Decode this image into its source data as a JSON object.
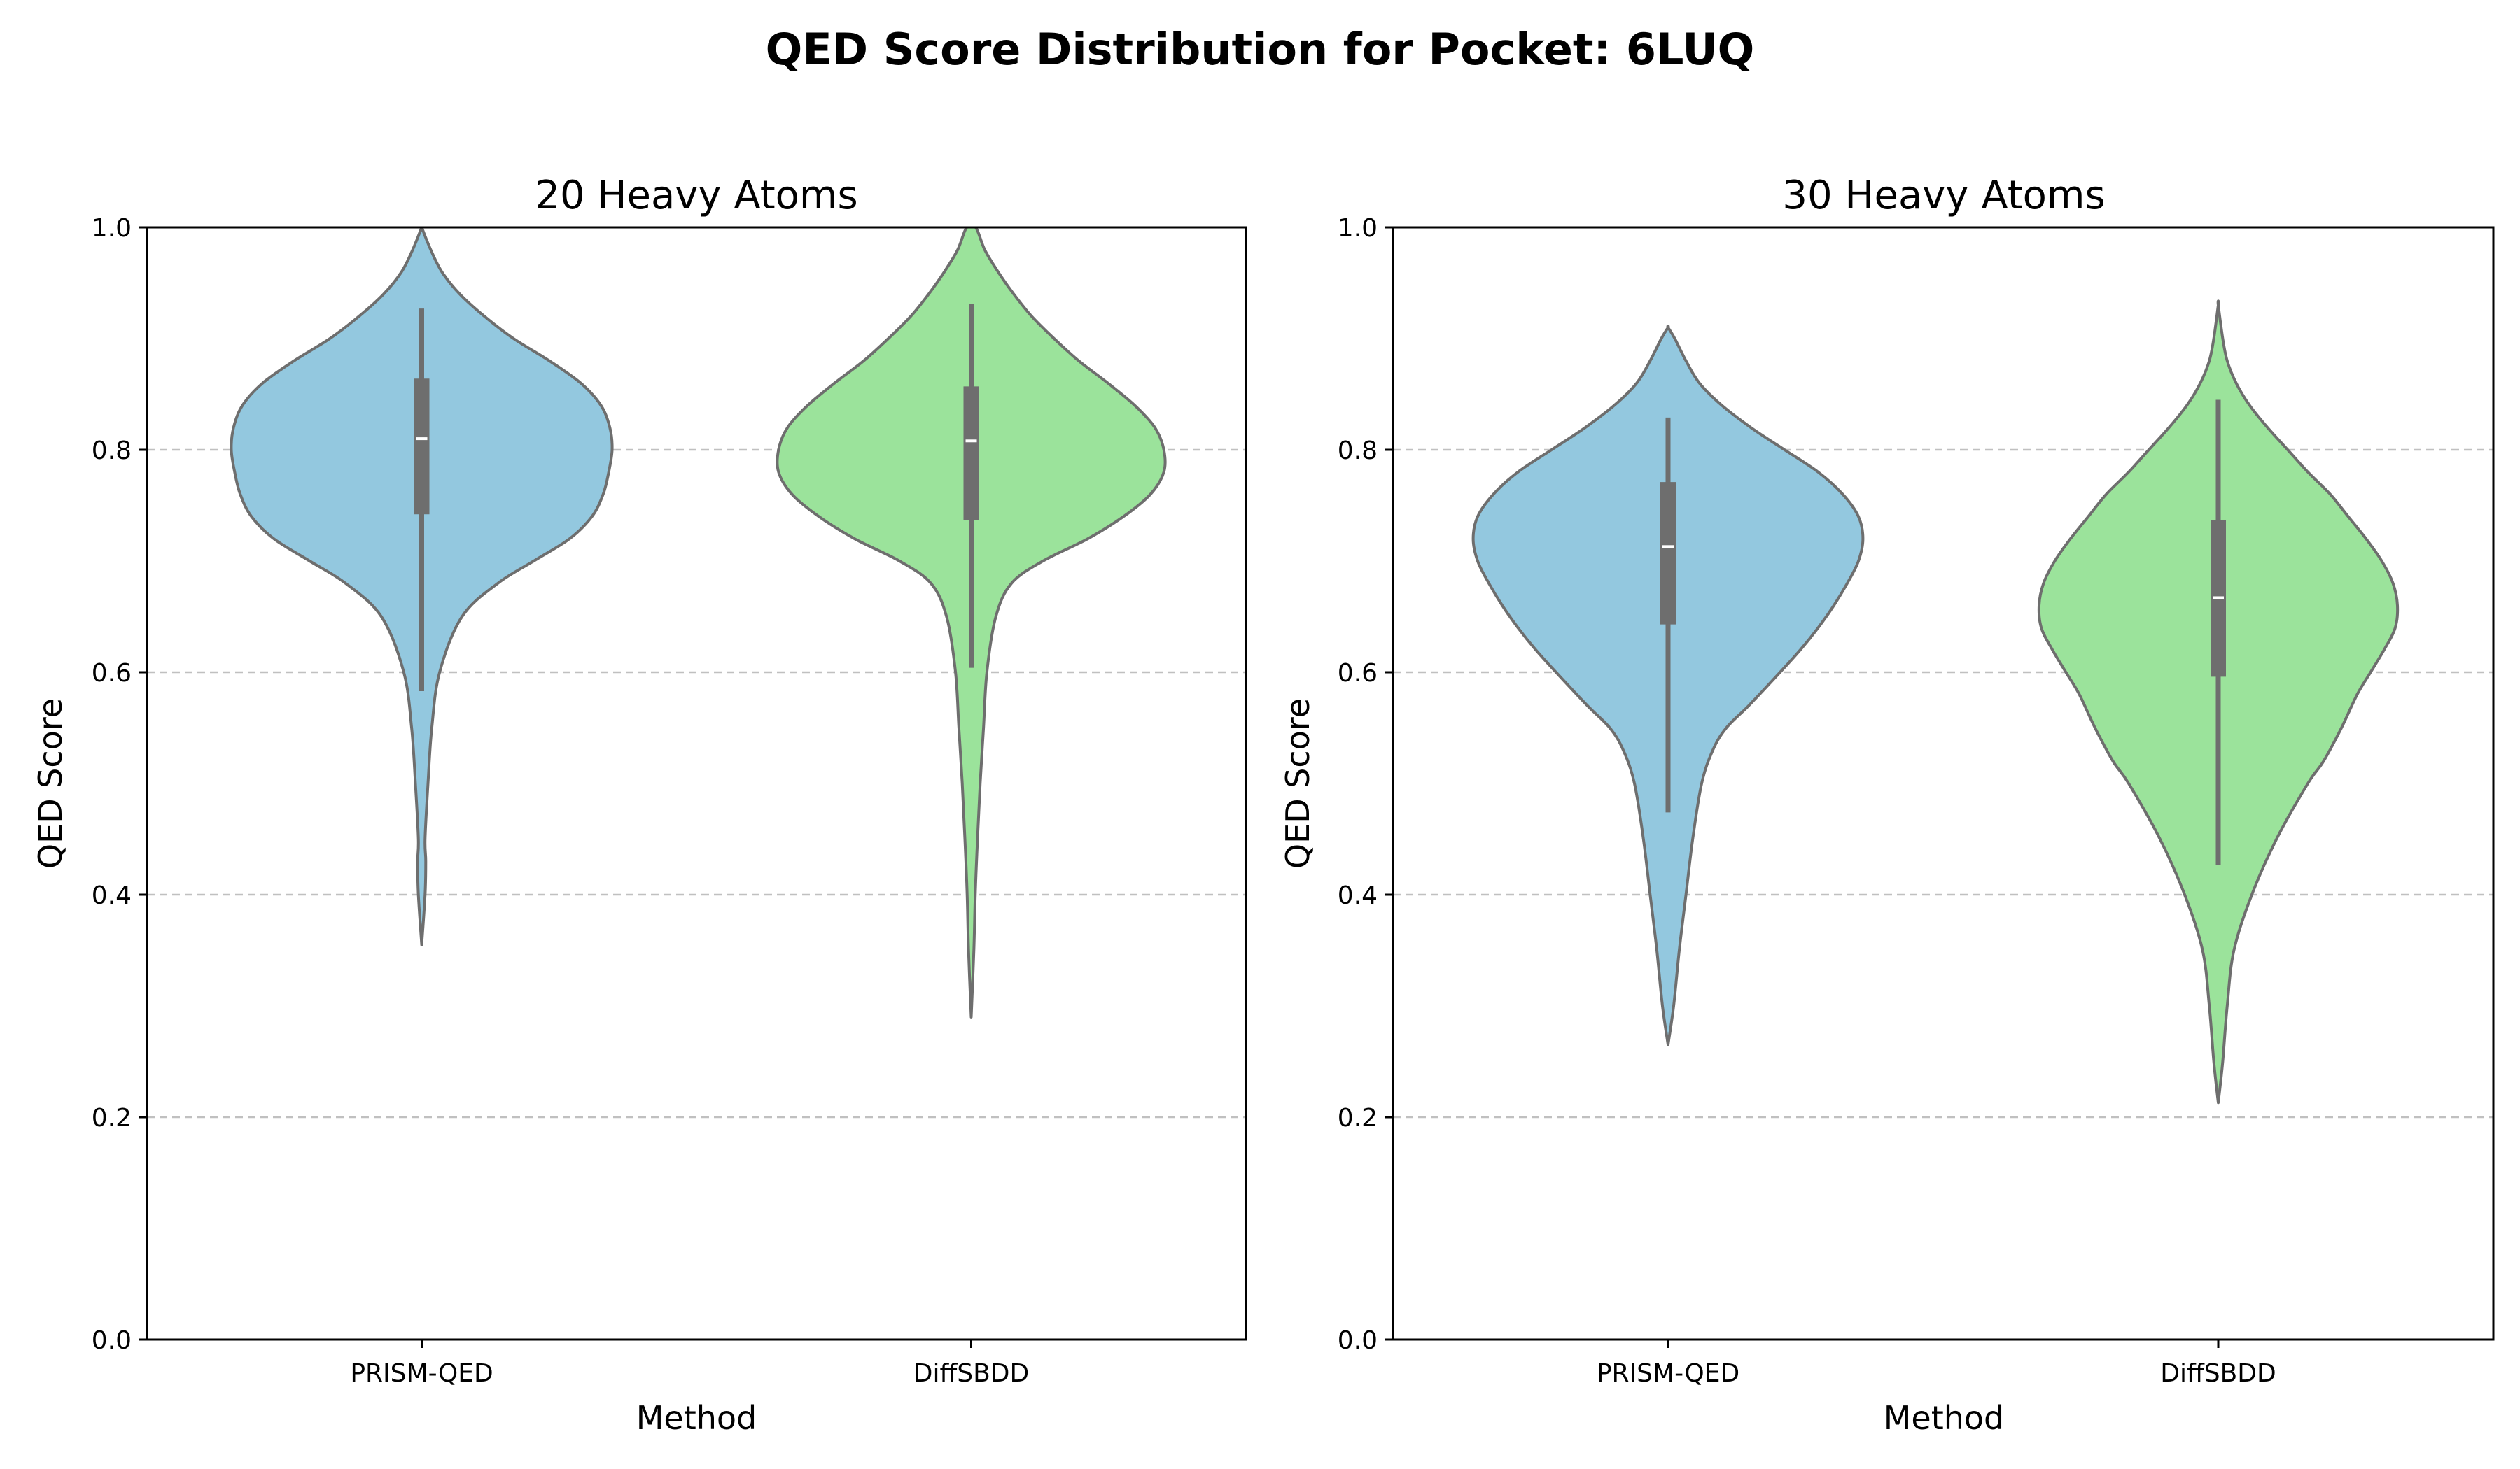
{
  "figure_title": "QED Score Distribution for Pocket: 6LUQ",
  "colors": {
    "PRISM-QED": "#93c8df",
    "DiffSBDD": "#9be39b",
    "outline": "#6e6e6e",
    "grid": "#c0c0c0"
  },
  "chart_data": [
    {
      "type": "violin",
      "title": "20 Heavy Atoms",
      "xlabel": "Method",
      "ylabel": "QED Score",
      "ylim": [
        0,
        1
      ],
      "yticks": [
        "0.0",
        "0.2",
        "0.4",
        "0.6",
        "0.8",
        "1.0"
      ],
      "grid": "horizontal dashed at 0.2, 0.4, 0.6, 0.8",
      "categories": [
        "PRISM-QED",
        "DiffSBDD"
      ],
      "series": [
        {
          "name": "PRISM-QED",
          "median": 0.81,
          "q1": 0.742,
          "q3": 0.864,
          "whisker_low": 0.583,
          "whisker_high": 0.927,
          "density": [
            [
              0.355,
              0.0
            ],
            [
              0.4,
              0.015
            ],
            [
              0.43,
              0.018
            ],
            [
              0.45,
              0.015
            ],
            [
              0.5,
              0.028
            ],
            [
              0.55,
              0.045
            ],
            [
              0.6,
              0.08
            ],
            [
              0.65,
              0.18
            ],
            [
              0.68,
              0.34
            ],
            [
              0.7,
              0.5
            ],
            [
              0.72,
              0.66
            ],
            [
              0.74,
              0.76
            ],
            [
              0.76,
              0.81
            ],
            [
              0.78,
              0.835
            ],
            [
              0.8,
              0.85
            ],
            [
              0.82,
              0.84
            ],
            [
              0.84,
              0.8
            ],
            [
              0.86,
              0.71
            ],
            [
              0.88,
              0.57
            ],
            [
              0.9,
              0.41
            ],
            [
              0.92,
              0.28
            ],
            [
              0.94,
              0.17
            ],
            [
              0.96,
              0.09
            ],
            [
              0.98,
              0.04
            ],
            [
              1.0,
              0.0
            ]
          ]
        },
        {
          "name": "DiffSBDD",
          "median": 0.808,
          "q1": 0.737,
          "q3": 0.857,
          "whisker_low": 0.604,
          "whisker_high": 0.931,
          "density": [
            [
              0.29,
              0.0
            ],
            [
              0.35,
              0.012
            ],
            [
              0.4,
              0.018
            ],
            [
              0.45,
              0.028
            ],
            [
              0.5,
              0.04
            ],
            [
              0.55,
              0.055
            ],
            [
              0.6,
              0.07
            ],
            [
              0.65,
              0.11
            ],
            [
              0.68,
              0.18
            ],
            [
              0.7,
              0.32
            ],
            [
              0.72,
              0.52
            ],
            [
              0.74,
              0.68
            ],
            [
              0.76,
              0.8
            ],
            [
              0.78,
              0.86
            ],
            [
              0.8,
              0.86
            ],
            [
              0.82,
              0.82
            ],
            [
              0.84,
              0.73
            ],
            [
              0.86,
              0.61
            ],
            [
              0.88,
              0.48
            ],
            [
              0.9,
              0.37
            ],
            [
              0.92,
              0.27
            ],
            [
              0.94,
              0.19
            ],
            [
              0.96,
              0.12
            ],
            [
              0.98,
              0.06
            ],
            [
              1.0,
              0.02
            ]
          ]
        }
      ]
    },
    {
      "type": "violin",
      "title": "30 Heavy Atoms",
      "xlabel": "Method",
      "ylabel": "QED Score",
      "ylim": [
        0,
        1
      ],
      "yticks": [
        "0.0",
        "0.2",
        "0.4",
        "0.6",
        "0.8",
        "1.0"
      ],
      "grid": "horizontal dashed at 0.2, 0.4, 0.6, 0.8",
      "categories": [
        "PRISM-QED",
        "DiffSBDD"
      ],
      "series": [
        {
          "name": "PRISM-QED",
          "median": 0.713,
          "q1": 0.643,
          "q3": 0.771,
          "whisker_low": 0.474,
          "whisker_high": 0.829,
          "density": [
            [
              0.265,
              0.0
            ],
            [
              0.3,
              0.025
            ],
            [
              0.35,
              0.05
            ],
            [
              0.4,
              0.08
            ],
            [
              0.45,
              0.11
            ],
            [
              0.5,
              0.15
            ],
            [
              0.53,
              0.2
            ],
            [
              0.55,
              0.26
            ],
            [
              0.57,
              0.36
            ],
            [
              0.6,
              0.5
            ],
            [
              0.62,
              0.59
            ],
            [
              0.64,
              0.67
            ],
            [
              0.66,
              0.74
            ],
            [
              0.68,
              0.8
            ],
            [
              0.7,
              0.85
            ],
            [
              0.72,
              0.87
            ],
            [
              0.74,
              0.85
            ],
            [
              0.76,
              0.78
            ],
            [
              0.78,
              0.67
            ],
            [
              0.8,
              0.52
            ],
            [
              0.82,
              0.37
            ],
            [
              0.84,
              0.24
            ],
            [
              0.86,
              0.14
            ],
            [
              0.88,
              0.08
            ],
            [
              0.9,
              0.03
            ],
            [
              0.91,
              0.0
            ]
          ]
        },
        {
          "name": "DiffSBDD",
          "median": 0.667,
          "q1": 0.596,
          "q3": 0.737,
          "whisker_low": 0.427,
          "whisker_high": 0.845,
          "density": [
            [
              0.213,
              0.0
            ],
            [
              0.25,
              0.02
            ],
            [
              0.3,
              0.04
            ],
            [
              0.35,
              0.07
            ],
            [
              0.4,
              0.15
            ],
            [
              0.45,
              0.26
            ],
            [
              0.5,
              0.4
            ],
            [
              0.52,
              0.47
            ],
            [
              0.55,
              0.55
            ],
            [
              0.58,
              0.62
            ],
            [
              0.6,
              0.68
            ],
            [
              0.62,
              0.74
            ],
            [
              0.64,
              0.79
            ],
            [
              0.66,
              0.8
            ],
            [
              0.68,
              0.78
            ],
            [
              0.7,
              0.73
            ],
            [
              0.72,
              0.66
            ],
            [
              0.74,
              0.58
            ],
            [
              0.76,
              0.5
            ],
            [
              0.78,
              0.4
            ],
            [
              0.8,
              0.31
            ],
            [
              0.82,
              0.22
            ],
            [
              0.84,
              0.14
            ],
            [
              0.86,
              0.08
            ],
            [
              0.88,
              0.04
            ],
            [
              0.9,
              0.02
            ],
            [
              0.93,
              0.0
            ]
          ]
        }
      ]
    }
  ]
}
